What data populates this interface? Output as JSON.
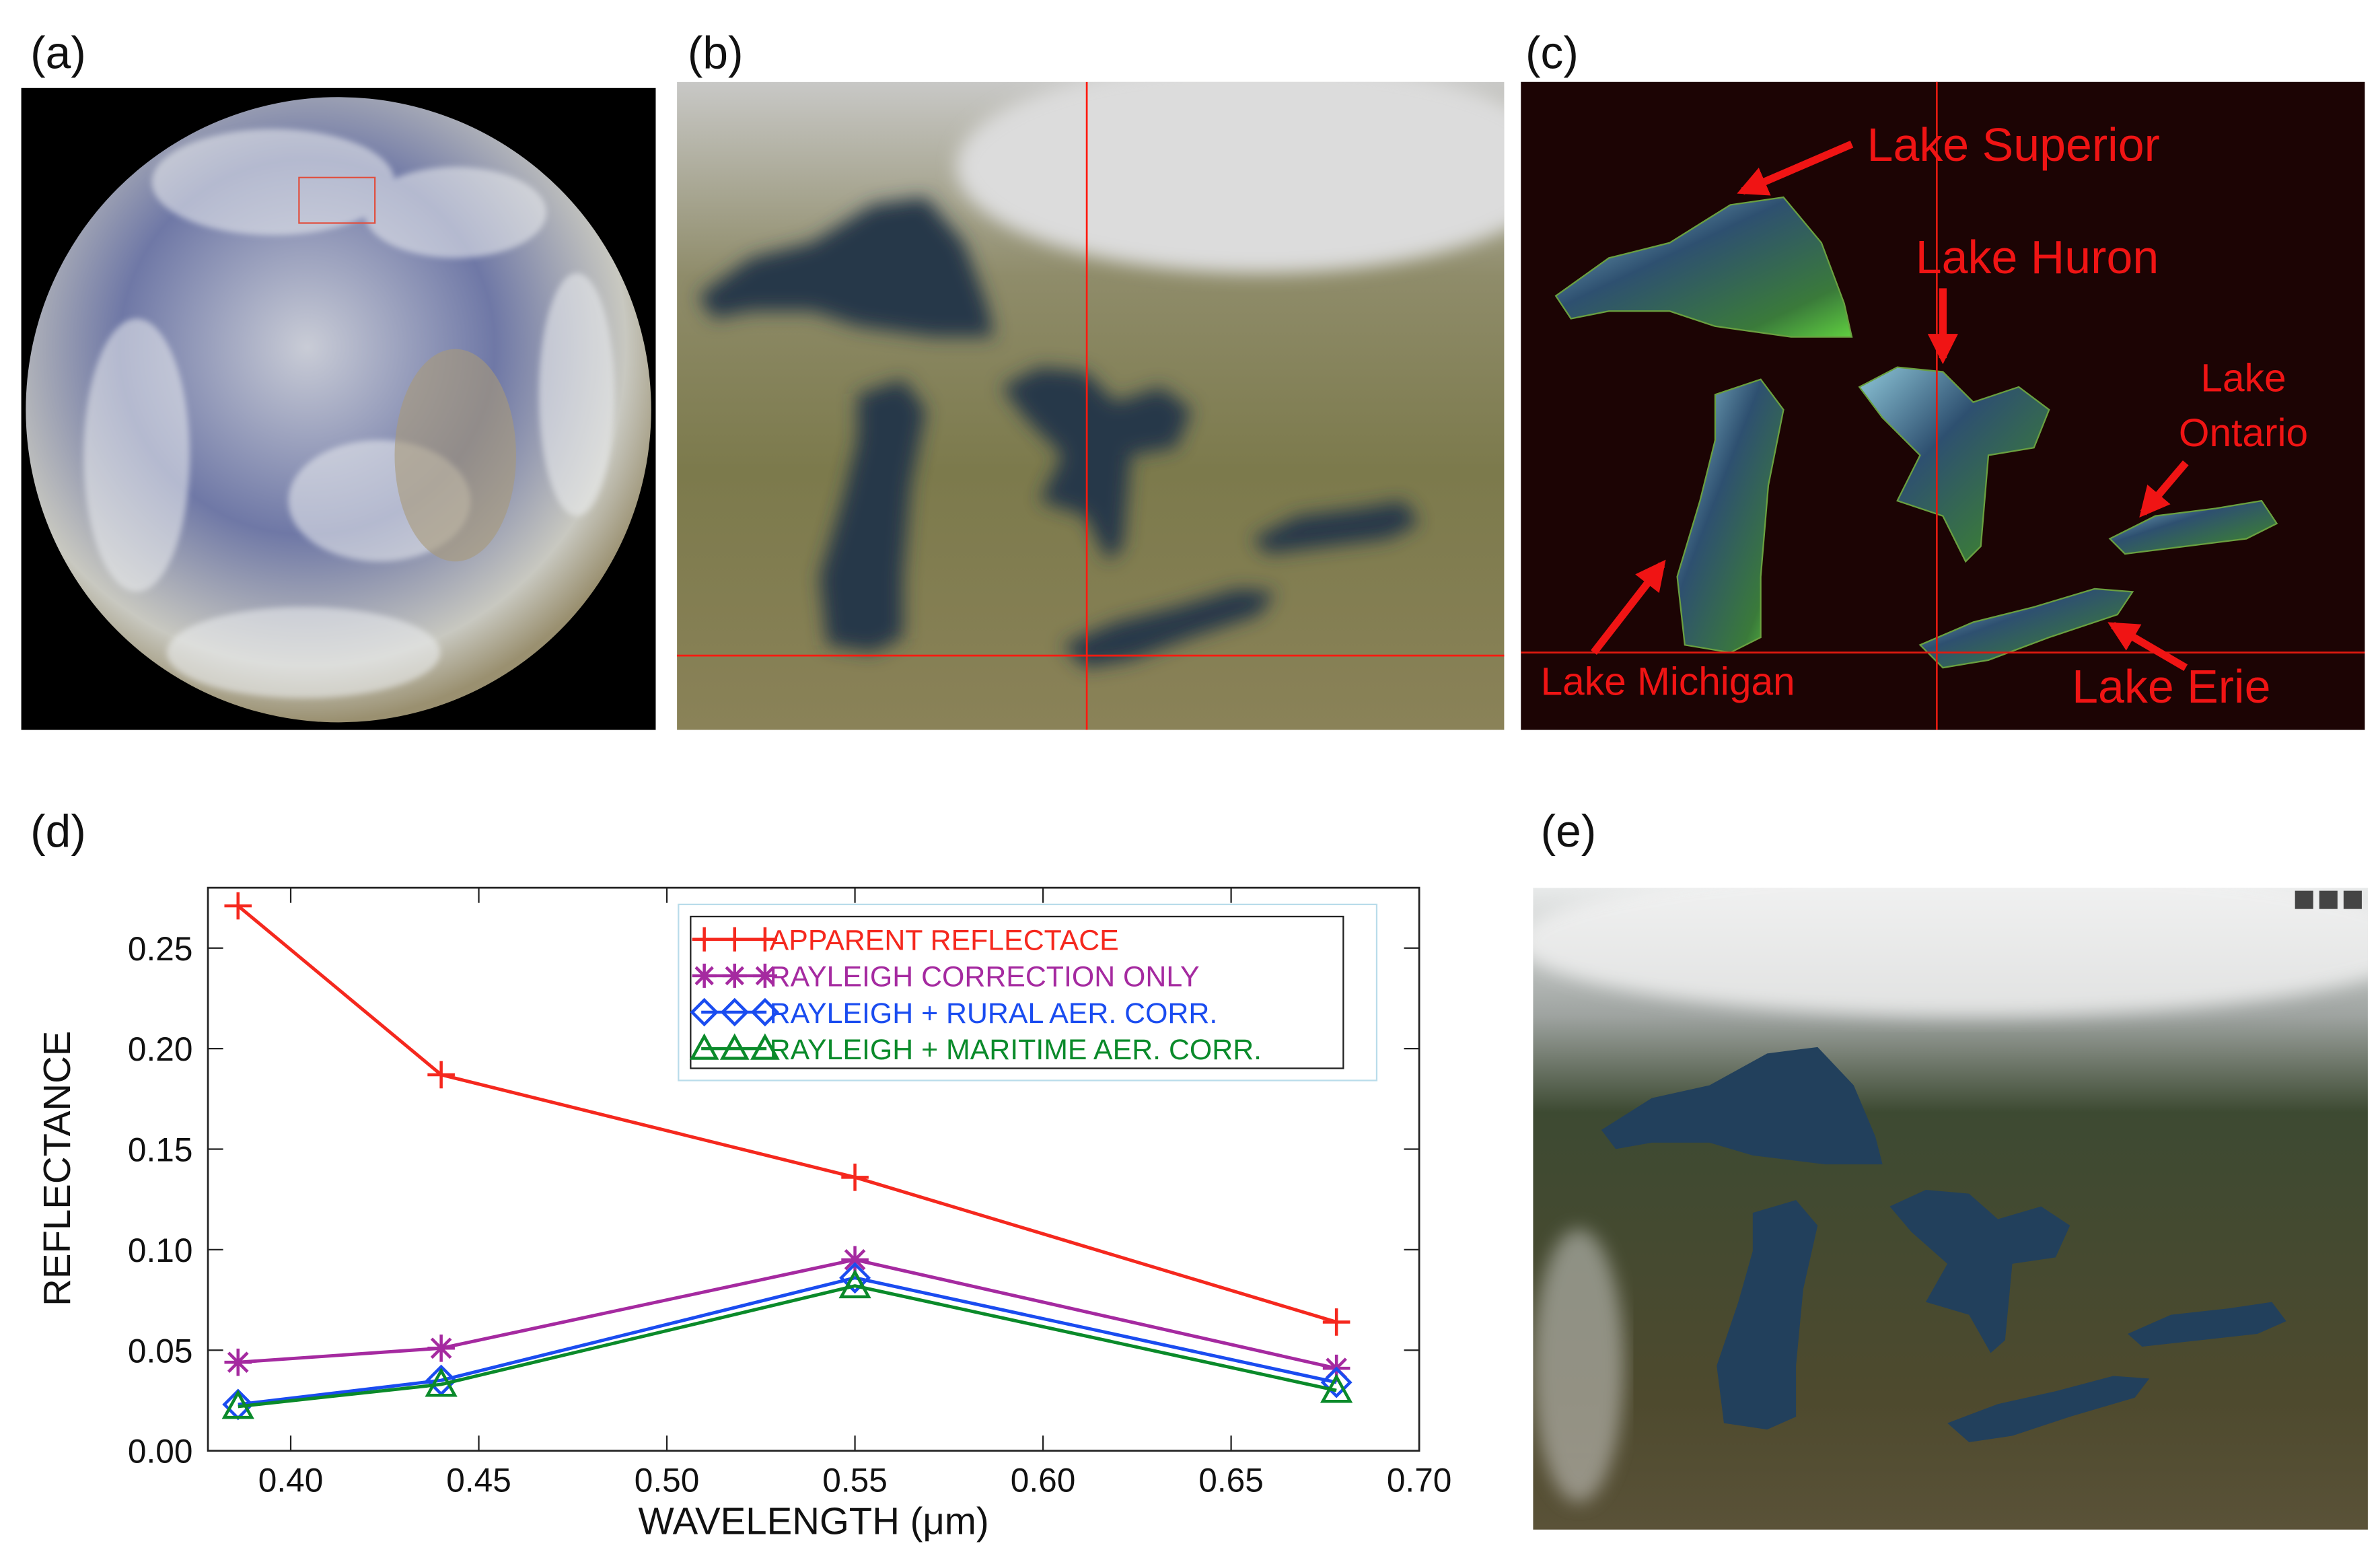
{
  "panels": [
    {
      "label": "(a)"
    },
    {
      "label": "(b)"
    },
    {
      "label": "(c)",
      "annotations": [
        {
          "lines": [
            "Lake Superior"
          ]
        },
        {
          "lines": [
            "Lake Huron"
          ]
        },
        {
          "lines": [
            "Lake",
            "Ontario"
          ]
        },
        {
          "lines": [
            "Lake Michigan"
          ]
        },
        {
          "lines": [
            "Lake Erie"
          ]
        }
      ]
    },
    {
      "label": "(d)"
    },
    {
      "label": "(e)"
    }
  ],
  "chart_data": {
    "type": "line",
    "xlabel": "WAVELENGTH (μm)",
    "ylabel": "REFLECTANCE",
    "x": [
      0.386,
      0.44,
      0.55,
      0.678
    ],
    "series": [
      {
        "name": "APPARENT REFLECTACE",
        "color": "#f5281e",
        "marker": "plus",
        "values": [
          0.271,
          0.187,
          0.136,
          0.064
        ]
      },
      {
        "name": "RAYLEIGH CORRECTION ONLY",
        "color": "#a52aa0",
        "marker": "star",
        "values": [
          0.044,
          0.051,
          0.095,
          0.041
        ]
      },
      {
        "name": "RAYLEIGH + RURAL AER. CORR.",
        "color": "#1a4cf0",
        "marker": "diamond",
        "values": [
          0.023,
          0.035,
          0.086,
          0.034
        ]
      },
      {
        "name": "RAYLEIGH + MARITIME AER. CORR.",
        "color": "#0a8a2a",
        "marker": "triangle",
        "values": [
          0.022,
          0.033,
          0.082,
          0.03
        ]
      }
    ],
    "xlim": [
      0.378,
      0.7
    ],
    "ylim": [
      0,
      0.28
    ],
    "xticks": [
      {
        "value": 0.4,
        "label": "0.40"
      },
      0.45,
      {
        "value": 0.5,
        "label": "0.50"
      },
      0.55,
      {
        "value": 0.6,
        "label": "0.60"
      },
      0.65,
      {
        "value": 0.7,
        "label": "0.70"
      }
    ],
    "yticks": [
      {
        "value": 0,
        "label": "0.00"
      },
      0.05,
      {
        "value": 0.1,
        "label": "0.10"
      },
      0.15,
      {
        "value": 0.2,
        "label": "0.20"
      },
      0.25
    ],
    "legend": "upper right",
    "grid": false
  }
}
